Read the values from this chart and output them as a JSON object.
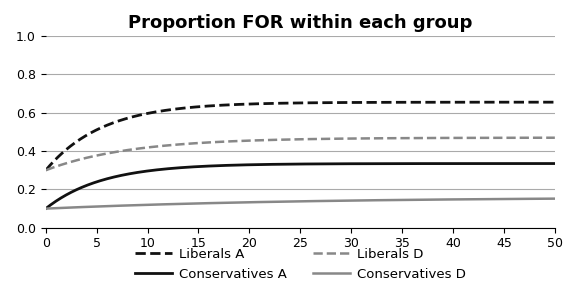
{
  "title": "Proportion FOR within each group",
  "title_fontsize": 13,
  "title_fontweight": "bold",
  "xlim": [
    0,
    50
  ],
  "ylim": [
    0,
    1
  ],
  "xticks": [
    0,
    5,
    10,
    15,
    20,
    25,
    30,
    35,
    40,
    45,
    50
  ],
  "yticks": [
    0,
    0.2,
    0.4,
    0.6,
    0.8,
    1
  ],
  "background_color": "#ffffff",
  "grid_color": "#aaaaaa",
  "lines": [
    {
      "label": "Liberals A",
      "color": "#111111",
      "linestyle": "--",
      "linewidth": 2.0,
      "start": 0.3,
      "end": 0.655,
      "rate": 0.18
    },
    {
      "label": "Conservatives A",
      "color": "#111111",
      "linestyle": "-",
      "linewidth": 2.0,
      "start": 0.1,
      "end": 0.335,
      "rate": 0.18
    },
    {
      "label": "Liberals D",
      "color": "#888888",
      "linestyle": "--",
      "linewidth": 1.8,
      "start": 0.3,
      "end": 0.47,
      "rate": 0.12
    },
    {
      "label": "Conservatives D",
      "color": "#888888",
      "linestyle": "-",
      "linewidth": 1.8,
      "start": 0.1,
      "end": 0.16,
      "rate": 0.04
    }
  ],
  "legend_ncol": 2,
  "legend_fontsize": 9.5,
  "legend_order": [
    "Liberals A",
    "Conservatives A",
    "Liberals D",
    "Conservatives D"
  ]
}
